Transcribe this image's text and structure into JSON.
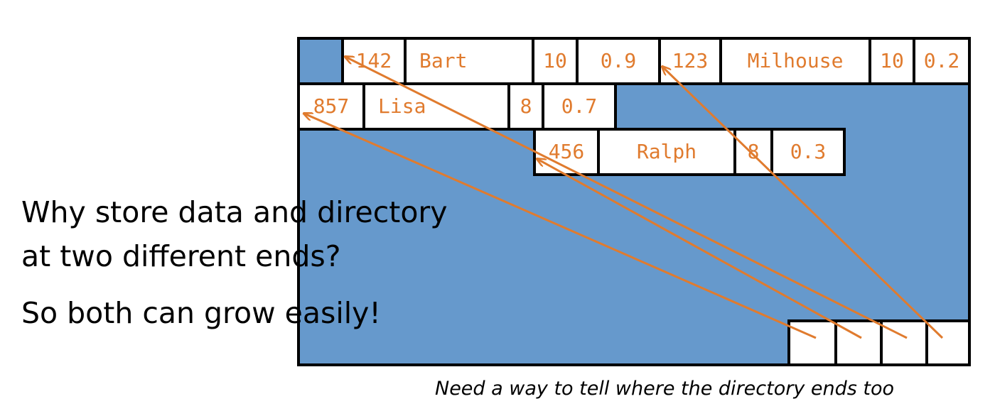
{
  "colors": {
    "block": "#6699cc",
    "border": "#000000",
    "record_text": "#e07b2e",
    "pointer": "#e07b2e",
    "background": "#ffffff"
  },
  "records": [
    {
      "id": "142",
      "name": "Bart",
      "num": "10",
      "score": "0.9"
    },
    {
      "id": "123",
      "name": "Milhouse",
      "num": "10",
      "score": "0.2"
    },
    {
      "id": "857",
      "name": "Lisa",
      "num": "8",
      "score": "0.7"
    },
    {
      "id": "456",
      "name": "Ralph",
      "num": "8",
      "score": "0.3"
    }
  ],
  "directory": {
    "slot_count": 4,
    "pointer_targets": [
      "857",
      "456",
      "142",
      "123"
    ]
  },
  "question": {
    "line1": "Why store data and directory",
    "line2": "at two different ends?"
  },
  "answer": "So both can grow easily!",
  "note": "Need a way to tell where the directory ends too"
}
